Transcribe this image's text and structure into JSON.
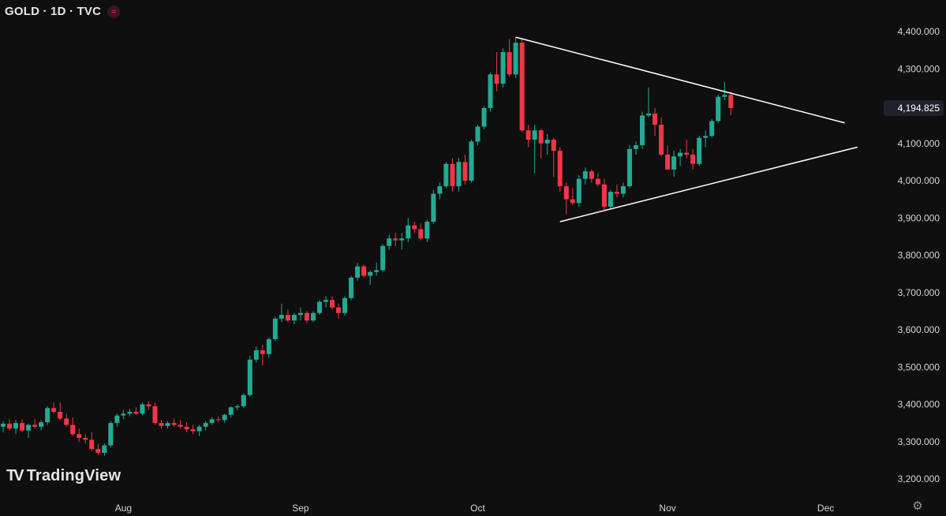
{
  "header": {
    "title": "GOLD · 1D · TVC",
    "badge_icon": "wave-icon"
  },
  "branding": {
    "logo_text": "TradingView",
    "logo_icon": "tradingview-logo-icon"
  },
  "settings_icon": "gear-icon",
  "colors": {
    "background": "#0f0f0f",
    "up": "#22ab94",
    "down": "#f23645",
    "trendline": "#ffffff",
    "price_label_bg": "#1e222d",
    "text": "#d1d4dc"
  },
  "chart_data": {
    "type": "candlestick",
    "symbol": "GOLD",
    "interval": "1D",
    "source": "TVC",
    "y_axis": {
      "ticks": [
        "4,400.000",
        "4,300.000",
        "4,194.825",
        "4,100.000",
        "4,000.000",
        "3,900.000",
        "3,800.000",
        "3,700.000",
        "3,600.000",
        "3,500.000",
        "3,400.000",
        "3,300.000",
        "3,200.000"
      ],
      "tick_values": [
        4400,
        4300,
        4100,
        4000,
        3900,
        3800,
        3700,
        3600,
        3500,
        3400,
        3300,
        3200
      ],
      "range": [
        3180,
        4430
      ],
      "position": "right"
    },
    "last_price": {
      "label": "4,194.825",
      "value": 4194.825
    },
    "x_axis": {
      "labels": [
        {
          "label": "Aug",
          "index": 19
        },
        {
          "label": "Sep",
          "index": 47
        },
        {
          "label": "Oct",
          "index": 75
        },
        {
          "label": "Nov",
          "index": 105
        },
        {
          "label": "Dec",
          "index": 130
        }
      ]
    },
    "candles": [
      [
        3340,
        3355,
        3325,
        3348
      ],
      [
        3348,
        3360,
        3330,
        3335
      ],
      [
        3335,
        3358,
        3320,
        3350
      ],
      [
        3350,
        3360,
        3325,
        3330
      ],
      [
        3330,
        3348,
        3310,
        3345
      ],
      [
        3345,
        3360,
        3335,
        3340
      ],
      [
        3340,
        3358,
        3330,
        3352
      ],
      [
        3352,
        3395,
        3345,
        3390
      ],
      [
        3390,
        3405,
        3375,
        3380
      ],
      [
        3380,
        3405,
        3358,
        3362
      ],
      [
        3362,
        3375,
        3340,
        3345
      ],
      [
        3345,
        3365,
        3315,
        3320
      ],
      [
        3320,
        3335,
        3300,
        3310
      ],
      [
        3310,
        3320,
        3295,
        3305
      ],
      [
        3305,
        3325,
        3275,
        3280
      ],
      [
        3280,
        3295,
        3265,
        3270
      ],
      [
        3270,
        3295,
        3262,
        3290
      ],
      [
        3290,
        3355,
        3285,
        3350
      ],
      [
        3350,
        3375,
        3340,
        3370
      ],
      [
        3370,
        3385,
        3360,
        3375
      ],
      [
        3375,
        3388,
        3368,
        3380
      ],
      [
        3380,
        3392,
        3372,
        3375
      ],
      [
        3375,
        3405,
        3370,
        3400
      ],
      [
        3400,
        3408,
        3385,
        3395
      ],
      [
        3395,
        3405,
        3345,
        3350
      ],
      [
        3350,
        3358,
        3335,
        3342
      ],
      [
        3342,
        3355,
        3335,
        3350
      ],
      [
        3350,
        3362,
        3340,
        3345
      ],
      [
        3345,
        3358,
        3335,
        3340
      ],
      [
        3340,
        3352,
        3325,
        3333
      ],
      [
        3333,
        3345,
        3320,
        3328
      ],
      [
        3328,
        3345,
        3315,
        3340
      ],
      [
        3340,
        3355,
        3330,
        3350
      ],
      [
        3350,
        3365,
        3345,
        3360
      ],
      [
        3360,
        3368,
        3352,
        3358
      ],
      [
        3358,
        3375,
        3350,
        3372
      ],
      [
        3372,
        3395,
        3365,
        3392
      ],
      [
        3392,
        3400,
        3385,
        3395
      ],
      [
        3395,
        3430,
        3390,
        3425
      ],
      [
        3425,
        3530,
        3420,
        3520
      ],
      [
        3520,
        3555,
        3512,
        3545
      ],
      [
        3545,
        3560,
        3505,
        3535
      ],
      [
        3535,
        3580,
        3525,
        3575
      ],
      [
        3575,
        3635,
        3570,
        3630
      ],
      [
        3630,
        3670,
        3620,
        3640
      ],
      [
        3640,
        3655,
        3620,
        3625
      ],
      [
        3625,
        3645,
        3615,
        3640
      ],
      [
        3640,
        3660,
        3625,
        3645
      ],
      [
        3645,
        3650,
        3618,
        3625
      ],
      [
        3625,
        3650,
        3620,
        3645
      ],
      [
        3645,
        3680,
        3640,
        3675
      ],
      [
        3675,
        3690,
        3660,
        3680
      ],
      [
        3680,
        3690,
        3655,
        3660
      ],
      [
        3660,
        3670,
        3630,
        3645
      ],
      [
        3645,
        3690,
        3638,
        3685
      ],
      [
        3685,
        3745,
        3680,
        3740
      ],
      [
        3740,
        3780,
        3732,
        3770
      ],
      [
        3770,
        3775,
        3740,
        3745
      ],
      [
        3745,
        3760,
        3720,
        3755
      ],
      [
        3755,
        3780,
        3745,
        3760
      ],
      [
        3760,
        3830,
        3755,
        3825
      ],
      [
        3825,
        3855,
        3815,
        3845
      ],
      [
        3845,
        3860,
        3825,
        3840
      ],
      [
        3840,
        3860,
        3815,
        3845
      ],
      [
        3845,
        3900,
        3835,
        3880
      ],
      [
        3880,
        3890,
        3860,
        3870
      ],
      [
        3870,
        3885,
        3840,
        3845
      ],
      [
        3845,
        3895,
        3835,
        3890
      ],
      [
        3890,
        3975,
        3885,
        3965
      ],
      [
        3965,
        3995,
        3950,
        3985
      ],
      [
        3985,
        4050,
        3980,
        4045
      ],
      [
        4045,
        4060,
        3970,
        3985
      ],
      [
        3985,
        4060,
        3970,
        4050
      ],
      [
        4050,
        4070,
        3990,
        4000
      ],
      [
        4000,
        4110,
        3995,
        4105
      ],
      [
        4105,
        4150,
        4095,
        4145
      ],
      [
        4145,
        4200,
        4138,
        4195
      ],
      [
        4195,
        4290,
        4185,
        4285
      ],
      [
        4285,
        4345,
        4240,
        4260
      ],
      [
        4260,
        4355,
        4250,
        4345
      ],
      [
        4345,
        4380,
        4280,
        4285
      ],
      [
        4285,
        4385,
        4275,
        4370
      ],
      [
        4370,
        4380,
        4130,
        4135
      ],
      [
        4135,
        4150,
        4090,
        4110
      ],
      [
        4110,
        4150,
        4020,
        4135
      ],
      [
        4135,
        4140,
        4060,
        4100
      ],
      [
        4100,
        4125,
        4070,
        4110
      ],
      [
        4110,
        4115,
        4010,
        4080
      ],
      [
        4080,
        4090,
        3970,
        3985
      ],
      [
        3985,
        3995,
        3910,
        3950
      ],
      [
        3950,
        3980,
        3935,
        3940
      ],
      [
        3940,
        4015,
        3930,
        4005
      ],
      [
        4005,
        4035,
        3990,
        4025
      ],
      [
        4025,
        4030,
        3995,
        4005
      ],
      [
        4005,
        4020,
        3985,
        3990
      ],
      [
        3990,
        4005,
        3920,
        3930
      ],
      [
        3930,
        3975,
        3925,
        3970
      ],
      [
        3970,
        3990,
        3955,
        3965
      ],
      [
        3965,
        3995,
        3955,
        3985
      ],
      [
        3985,
        4095,
        3980,
        4085
      ],
      [
        4085,
        4105,
        4070,
        4095
      ],
      [
        4095,
        4185,
        4085,
        4175
      ],
      [
        4175,
        4250,
        4170,
        4180
      ],
      [
        4180,
        4195,
        4120,
        4150
      ],
      [
        4150,
        4170,
        4065,
        4070
      ],
      [
        4070,
        4095,
        4030,
        4030
      ],
      [
        4030,
        4080,
        4010,
        4065
      ],
      [
        4065,
        4085,
        4040,
        4075
      ],
      [
        4075,
        4110,
        4060,
        4070
      ],
      [
        4070,
        4085,
        4030,
        4045
      ],
      [
        4045,
        4120,
        4040,
        4115
      ],
      [
        4115,
        4135,
        4090,
        4120
      ],
      [
        4120,
        4165,
        4115,
        4160
      ],
      [
        4160,
        4230,
        4155,
        4225
      ],
      [
        4225,
        4265,
        4215,
        4230
      ],
      [
        4230,
        4240,
        4175,
        4195
      ]
    ],
    "candle_format": [
      "open",
      "high",
      "low",
      "close"
    ],
    "trendlines": [
      {
        "name": "upper-resistance",
        "from": {
          "index": 81,
          "price": 4385
        },
        "to": {
          "index": 133,
          "price": 4155
        }
      },
      {
        "name": "lower-support",
        "from": {
          "index": 88,
          "price": 3890
        },
        "to": {
          "index": 135,
          "price": 4090
        }
      }
    ],
    "grid": false
  }
}
